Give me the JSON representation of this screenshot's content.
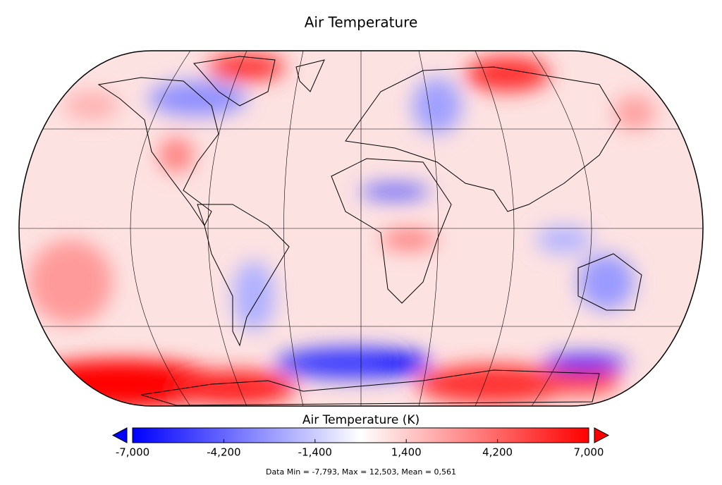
{
  "title": "Air Temperature",
  "colorbar": {
    "label": "Air Temperature (K)",
    "lim": [
      -7000,
      7000
    ],
    "colors": [
      "#0000ff",
      "#ffffff",
      "#ff0000"
    ],
    "ticks": [
      {
        "value": -7000,
        "label": "-7,000"
      },
      {
        "value": -4200,
        "label": "-4,200"
      },
      {
        "value": -1400,
        "label": "-1,400"
      },
      {
        "value": 1400,
        "label": "1,400"
      },
      {
        "value": 4200,
        "label": "4,200"
      },
      {
        "value": 7000,
        "label": "7,000"
      }
    ]
  },
  "footer": "Data Min = -7,793, Max = 12,503, Mean = 0,561"
}
